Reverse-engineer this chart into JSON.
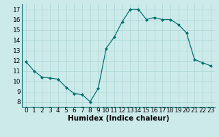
{
  "x": [
    0,
    1,
    2,
    3,
    4,
    5,
    6,
    7,
    8,
    9,
    10,
    11,
    12,
    13,
    14,
    15,
    16,
    17,
    18,
    19,
    20,
    21,
    22,
    23
  ],
  "y": [
    11.9,
    11.0,
    10.4,
    10.3,
    10.2,
    9.4,
    8.8,
    8.7,
    8.0,
    9.3,
    13.2,
    14.3,
    15.8,
    17.0,
    17.0,
    16.0,
    16.2,
    16.0,
    16.0,
    15.5,
    14.7,
    12.1,
    11.8,
    11.5
  ],
  "line_color": "#006e6e",
  "marker_color": "#006e6e",
  "bg_color": "#cdeaea",
  "grid_color": "#b0d8d8",
  "xlabel": "Humidex (Indice chaleur)",
  "xlabel_fontsize": 7.5,
  "ylabel_ticks": [
    8,
    9,
    10,
    11,
    12,
    13,
    14,
    15,
    16,
    17
  ],
  "xticks": [
    0,
    1,
    2,
    3,
    4,
    5,
    6,
    7,
    8,
    9,
    10,
    11,
    12,
    13,
    14,
    15,
    16,
    17,
    18,
    19,
    20,
    21,
    22,
    23
  ],
  "xlim": [
    -0.5,
    23.5
  ],
  "ylim": [
    7.5,
    17.5
  ],
  "tick_fontsize": 6.5
}
